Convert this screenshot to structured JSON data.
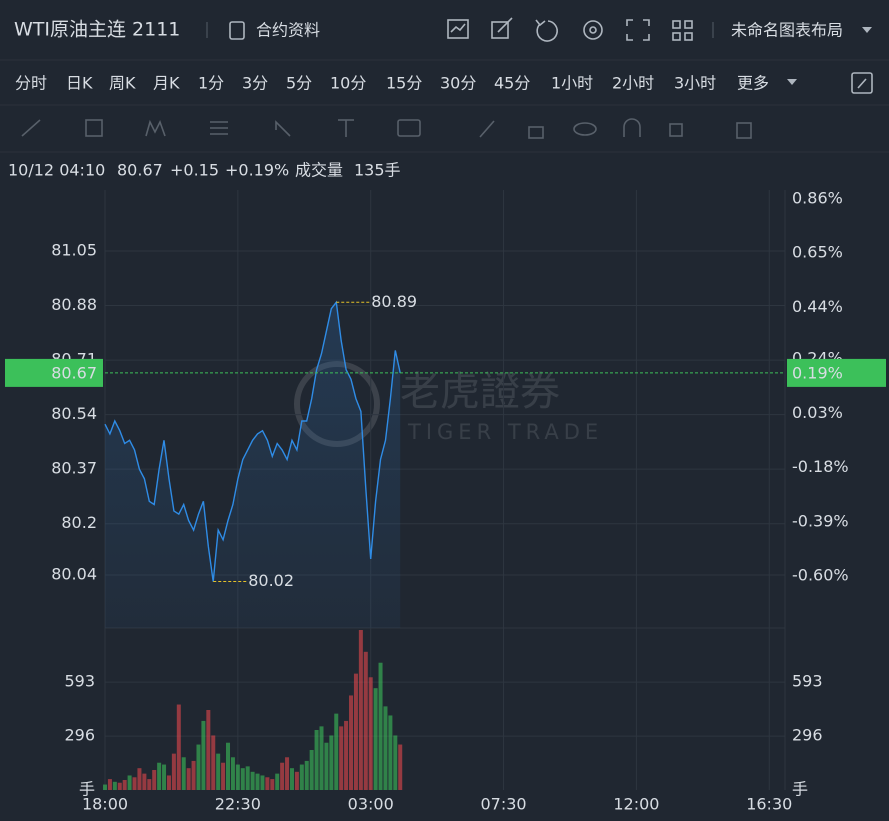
{
  "header": {
    "title": "WTI原油主连 2111",
    "contract_info": "合约资料",
    "layout": "未命名图表布局"
  },
  "periods": {
    "items": [
      "分时",
      "日K",
      "周K",
      "月K",
      "1分",
      "3分",
      "5分",
      "10分",
      "15分",
      "30分",
      "45分",
      "1小时",
      "2小时",
      "3小时",
      "更多"
    ],
    "active": 0
  },
  "info": {
    "time": "10/12 04:10",
    "change": "+0.15",
    "change_pct": "+0.19%",
    "volume_label": "成交量",
    "volume": "135手"
  },
  "watermark": {
    "cn": "老虎證券",
    "en": "TIGER TRADE"
  },
  "chart_data": {
    "type": "line",
    "x": [
      0,
      10,
      20,
      30,
      40,
      50,
      60,
      70,
      80,
      90,
      100,
      110,
      120,
      130,
      140,
      150,
      160,
      170,
      180,
      190,
      200,
      210,
      220,
      230,
      240,
      250,
      260,
      270,
      280,
      290,
      300,
      310,
      320,
      330,
      340,
      350,
      360,
      370,
      380,
      390,
      400,
      410,
      420,
      430,
      440,
      450,
      460,
      470,
      480,
      490,
      500,
      510,
      520,
      530,
      540,
      550,
      560,
      570,
      580,
      590,
      600
    ],
    "values": [
      80.51,
      80.48,
      80.52,
      80.49,
      80.45,
      80.46,
      80.43,
      80.37,
      80.34,
      80.27,
      80.26,
      80.37,
      80.46,
      80.34,
      80.24,
      80.23,
      80.26,
      80.21,
      80.18,
      80.23,
      80.27,
      80.13,
      80.02,
      80.18,
      80.15,
      80.21,
      80.26,
      80.34,
      80.4,
      80.43,
      80.46,
      80.48,
      80.49,
      80.46,
      80.41,
      80.45,
      80.43,
      80.4,
      80.46,
      80.43,
      80.52,
      80.52,
      80.59,
      80.68,
      80.73,
      80.8,
      80.87,
      80.89,
      80.77,
      80.68,
      80.65,
      80.59,
      80.55,
      80.31,
      80.09,
      80.27,
      80.4,
      80.46,
      80.59,
      80.74,
      80.67
    ],
    "volume": [
      30,
      60,
      45,
      40,
      55,
      80,
      70,
      120,
      90,
      60,
      110,
      150,
      140,
      80,
      200,
      470,
      180,
      120,
      160,
      250,
      380,
      440,
      300,
      200,
      150,
      260,
      180,
      140,
      120,
      130,
      100,
      90,
      80,
      70,
      60,
      90,
      150,
      180,
      120,
      100,
      140,
      160,
      220,
      330,
      350,
      260,
      300,
      420,
      350,
      380,
      520,
      640,
      880,
      760,
      620,
      560,
      700,
      460,
      410,
      300,
      250
    ],
    "xlim": [
      0,
      1382
    ],
    "xticks": [
      {
        "value": 0,
        "label": "18:00"
      },
      {
        "value": 270,
        "label": "22:30"
      },
      {
        "value": 540,
        "label": "03:00"
      },
      {
        "value": 810,
        "label": "07:30"
      },
      {
        "value": 1080,
        "label": "12:00"
      },
      {
        "value": 1350,
        "label": "16:30"
      }
    ],
    "ylim": [
      79.875,
      81.24
    ],
    "yticks": [
      81.05,
      80.88,
      80.71,
      80.54,
      80.37,
      80.2,
      80.04
    ],
    "y2lim": [
      -0.801,
      0.894
    ],
    "y2ticks": [
      {
        "value": 0.86,
        "label": "0.86%"
      },
      {
        "value": 0.65,
        "label": "0.65%"
      },
      {
        "value": 0.44,
        "label": "0.44%"
      },
      {
        "value": 0.24,
        "label": "0.24%"
      },
      {
        "value": 0.03,
        "label": "0.03%"
      },
      {
        "value": -0.18,
        "label": "-0.18%"
      },
      {
        "value": -0.39,
        "label": "-0.39%"
      },
      {
        "value": -0.6,
        "label": "-0.60%"
      }
    ],
    "vlim": [
      0,
      891
    ],
    "vticks": [
      593,
      296,
      {
        "value": 0,
        "label": "手"
      }
    ],
    "current_price": 80.67,
    "current_change_pct": {
      "value": 0.19,
      "label": "0.19%"
    },
    "annotations": [
      {
        "x": 470,
        "value": 80.89
      },
      {
        "x": 220,
        "value": 80.02
      }
    ],
    "line_color": "#2f8ce6",
    "up_color": "#3cc05a",
    "down_color": "#e5484d",
    "mark_color": "#e6c229",
    "grid": true
  }
}
